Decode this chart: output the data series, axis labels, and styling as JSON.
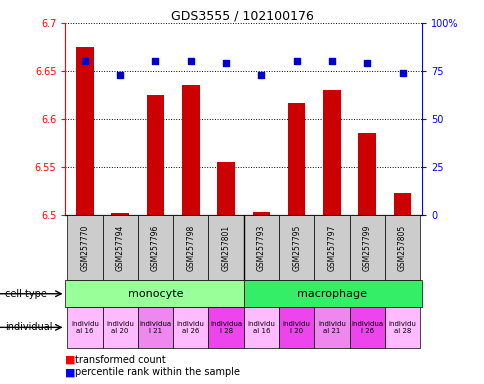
{
  "title": "GDS3555 / 102100176",
  "samples": [
    "GSM257770",
    "GSM257794",
    "GSM257796",
    "GSM257798",
    "GSM257801",
    "GSM257793",
    "GSM257795",
    "GSM257797",
    "GSM257799",
    "GSM257805"
  ],
  "bar_values": [
    6.675,
    6.502,
    6.625,
    6.635,
    6.555,
    6.503,
    6.617,
    6.63,
    6.585,
    6.523
  ],
  "dot_values": [
    80,
    73,
    80,
    80,
    79,
    73,
    80,
    80,
    79,
    74
  ],
  "ylim": [
    6.5,
    6.7
  ],
  "y2lim": [
    0,
    100
  ],
  "yticks": [
    6.5,
    6.55,
    6.6,
    6.65,
    6.7
  ],
  "y2ticks": [
    0,
    25,
    50,
    75,
    100
  ],
  "bar_color": "#cc0000",
  "dot_color": "#0000cc",
  "cell_type_color_mono": "#99ff99",
  "cell_type_color_macro": "#33ee66",
  "ind_colors": [
    "#ffbbff",
    "#ffbbff",
    "#ee88ee",
    "#ffbbff",
    "#ee44ee",
    "#ffbbff",
    "#ee44ee",
    "#ee88ee",
    "#ee44ee",
    "#ffbbff"
  ],
  "sample_bg_color": "#cccccc",
  "title_fontsize": 9,
  "axis_fontsize": 7,
  "label_fontsize": 7
}
